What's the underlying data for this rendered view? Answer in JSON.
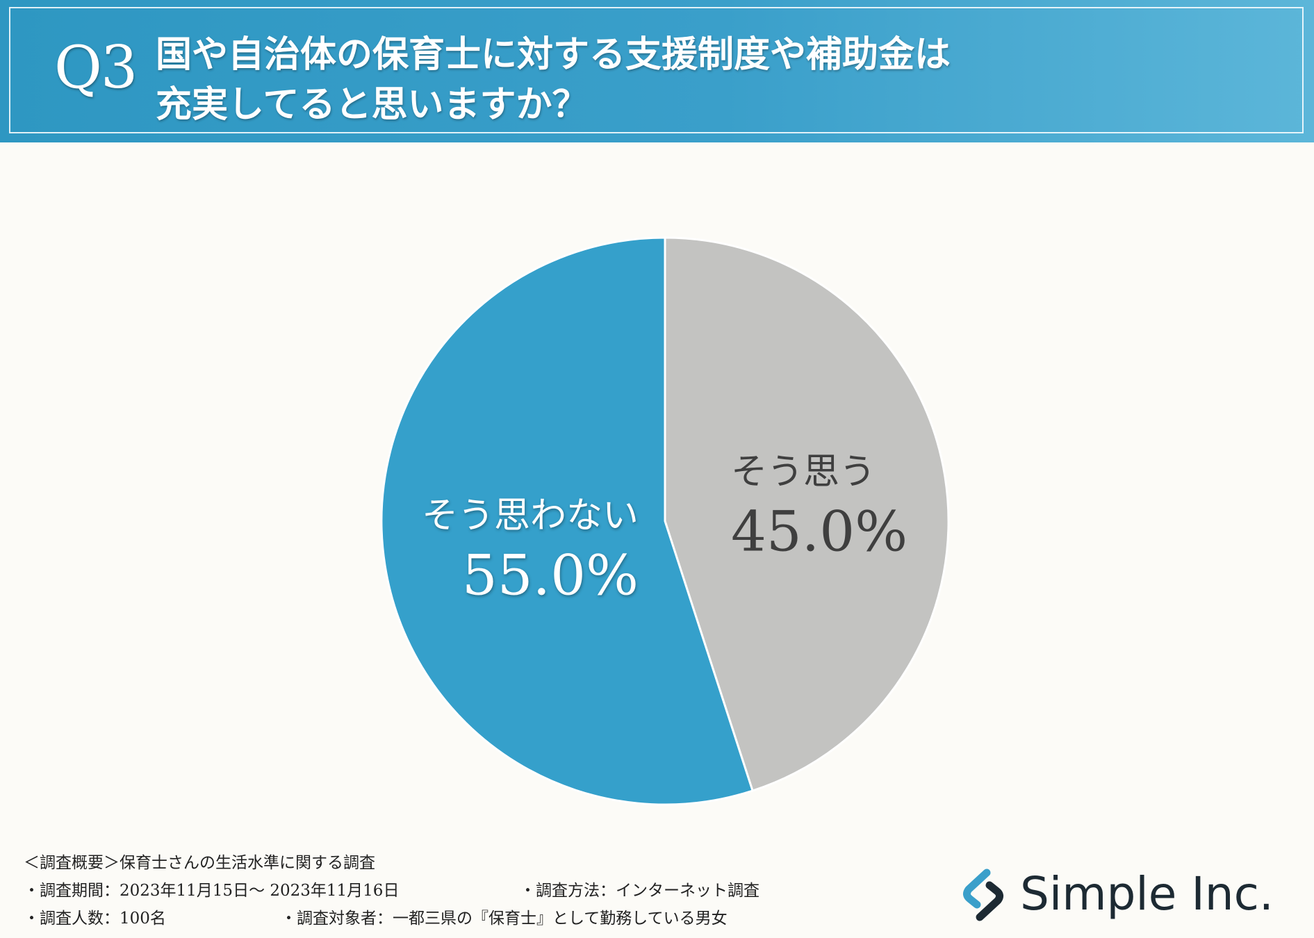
{
  "header": {
    "label": "Q3",
    "question_line_1": "国や自治体の保育士に対する支援制度や補助金は",
    "question_line_2": "充実してると思いますか？"
  },
  "chart_data": {
    "type": "pie",
    "slices": [
      {
        "label": "そう思う",
        "value": 45.0,
        "value_label": "45.0%",
        "color": "#c3c3c1",
        "text_color": "#3f3f3f"
      },
      {
        "label": "そう思わない",
        "value": 55.0,
        "value_label": "55.0%",
        "color": "#35a0cb",
        "text_color": "#ffffff"
      }
    ]
  },
  "footer": {
    "overview": "＜調査概要＞保育士さんの生活水準に関する調査",
    "period": "・調査期間：2023年11月15日～ 2023年11月16日",
    "method": "・調査方法：インターネット調査",
    "count": "・調査人数：100名",
    "target": "・調査対象者：一都三県の『保育士』として勤務している男女"
  },
  "logo": {
    "text": "Simple Inc.",
    "color": "#1d2a33",
    "accent": "#3a9fca"
  }
}
